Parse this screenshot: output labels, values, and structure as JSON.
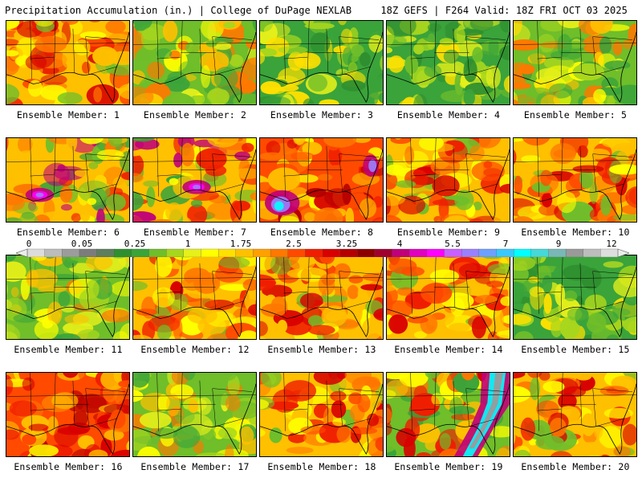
{
  "header": {
    "title": "Precipitation Accumulation (in.) | College of DuPage NEXLAB",
    "info": "18Z GEFS | F264 Valid: 18Z FRI OCT 03 2025"
  },
  "members": [
    {
      "label": "Ensemble Member: 1",
      "tone": "wet"
    },
    {
      "label": "Ensemble Member: 2",
      "tone": "moderate"
    },
    {
      "label": "Ensemble Member: 3",
      "tone": "dry"
    },
    {
      "label": "Ensemble Member: 4",
      "tone": "dry"
    },
    {
      "label": "Ensemble Member: 5",
      "tone": "moderate"
    },
    {
      "label": "Ensemble Member: 6",
      "tone": "gulf-magenta"
    },
    {
      "label": "Ensemble Member: 7",
      "tone": "gulf-magenta"
    },
    {
      "label": "Ensemble Member: 8",
      "tone": "very-wet"
    },
    {
      "label": "Ensemble Member: 9",
      "tone": "wet"
    },
    {
      "label": "Ensemble Member: 10",
      "tone": "wet"
    },
    {
      "label": "Ensemble Member: 11",
      "tone": "moderate"
    },
    {
      "label": "Ensemble Member: 12",
      "tone": "wet"
    },
    {
      "label": "Ensemble Member: 13",
      "tone": "wet"
    },
    {
      "label": "Ensemble Member: 14",
      "tone": "wet"
    },
    {
      "label": "Ensemble Member: 15",
      "tone": "dry"
    },
    {
      "label": "Ensemble Member: 16",
      "tone": "very-wet"
    },
    {
      "label": "Ensemble Member: 17",
      "tone": "moderate"
    },
    {
      "label": "Ensemble Member: 18",
      "tone": "wet"
    },
    {
      "label": "Ensemble Member: 19",
      "tone": "extreme-east"
    },
    {
      "label": "Ensemble Member: 20",
      "tone": "wet"
    }
  ],
  "legend": {
    "labels": [
      "0",
      "0.05",
      "0.25",
      "1",
      "1.75",
      "2.5",
      "3.25",
      "4",
      "5.5",
      "7",
      "9",
      "12"
    ],
    "colors": [
      "#dcdcdc",
      "#bcbcbc",
      "#9c9c9c",
      "#7c7c7c",
      "#5e7e5e",
      "#2f8f2f",
      "#3aa33a",
      "#6fbe2a",
      "#a7d61e",
      "#e6f01a",
      "#ffff00",
      "#ffe000",
      "#ffc000",
      "#ffa000",
      "#ff7800",
      "#ff4a00",
      "#f01e00",
      "#d80000",
      "#b40000",
      "#8c0000",
      "#a00030",
      "#c0007a",
      "#e000c0",
      "#ff00ff",
      "#c860ff",
      "#9a80ff",
      "#6ea0ff",
      "#3ac8ff",
      "#00ffff",
      "#44d8d8",
      "#7ab8b8",
      "#9a9a9a",
      "#bdbdbd",
      "#dedede"
    ]
  }
}
